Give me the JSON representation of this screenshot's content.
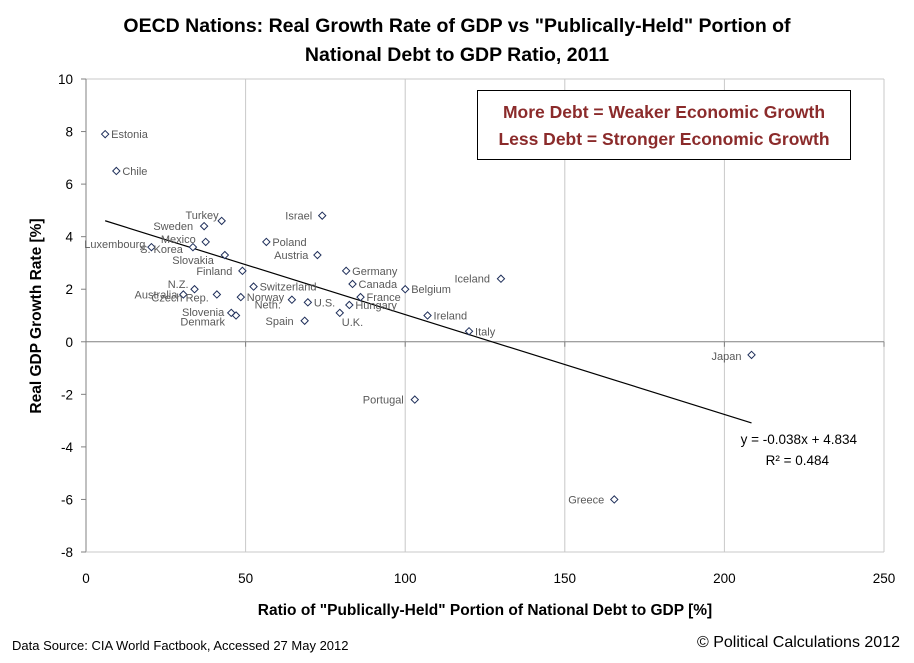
{
  "chart_data": {
    "type": "scatter",
    "title_lines": [
      "OECD Nations: Real Growth Rate of GDP vs \"Publically-Held\" Portion of",
      "National Debt to GDP Ratio, 2011"
    ],
    "xlabel": "Ratio of \"Publically-Held\" Portion of National Debt to GDP [%]",
    "ylabel": "Real GDP Growth Rate [%]",
    "xlim": [
      0,
      250
    ],
    "ylim": [
      -8,
      10
    ],
    "xticks": [
      0,
      50,
      100,
      150,
      200,
      250
    ],
    "yticks": [
      -8,
      -6,
      -4,
      -2,
      0,
      2,
      4,
      6,
      8,
      10
    ],
    "grid": "vertical",
    "points": [
      {
        "label": "Estonia",
        "x": 6,
        "y": 7.9
      },
      {
        "label": "Chile",
        "x": 9.5,
        "y": 6.5
      },
      {
        "label": "Luxembourg",
        "x": 20.5,
        "y": 3.6
      },
      {
        "label": "Turkey",
        "x": 42.5,
        "y": 4.6
      },
      {
        "label": "Sweden",
        "x": 37,
        "y": 4.4
      },
      {
        "label": "Mexico",
        "x": 37.5,
        "y": 3.8
      },
      {
        "label": "S. Korea",
        "x": 33.5,
        "y": 3.6
      },
      {
        "label": "Slovakia",
        "x": 43.5,
        "y": 3.3
      },
      {
        "label": "Poland",
        "x": 56.5,
        "y": 3.8
      },
      {
        "label": "Israel",
        "x": 74,
        "y": 4.8
      },
      {
        "label": "Austria",
        "x": 72.5,
        "y": 3.3
      },
      {
        "label": "Finland",
        "x": 49,
        "y": 2.7
      },
      {
        "label": "N.Z.",
        "x": 34,
        "y": 2.0
      },
      {
        "label": "Australia",
        "x": 30.5,
        "y": 1.8
      },
      {
        "label": "Czech Rep.",
        "x": 41,
        "y": 1.8
      },
      {
        "label": "Switzerland",
        "x": 52.5,
        "y": 2.1
      },
      {
        "label": "Norway",
        "x": 48.5,
        "y": 1.7
      },
      {
        "label": "Neth.",
        "x": 64.5,
        "y": 1.6
      },
      {
        "label": "U.S.",
        "x": 69.5,
        "y": 1.5
      },
      {
        "label": "Slovenia",
        "x": 45.5,
        "y": 1.1
      },
      {
        "label": "Denmark",
        "x": 47,
        "y": 1.0
      },
      {
        "label": "Spain",
        "x": 68.5,
        "y": 0.8
      },
      {
        "label": "Germany",
        "x": 81.5,
        "y": 2.7
      },
      {
        "label": "Canada",
        "x": 83.5,
        "y": 2.2
      },
      {
        "label": "France",
        "x": 86,
        "y": 1.7
      },
      {
        "label": "Hungary",
        "x": 82.5,
        "y": 1.4
      },
      {
        "label": "U.K.",
        "x": 79.5,
        "y": 1.1
      },
      {
        "label": "Belgium",
        "x": 100,
        "y": 2.0
      },
      {
        "label": "Iceland",
        "x": 130,
        "y": 2.4
      },
      {
        "label": "Ireland",
        "x": 107,
        "y": 1.0
      },
      {
        "label": "Italy",
        "x": 120,
        "y": 0.4
      },
      {
        "label": "Japan",
        "x": 208.5,
        "y": -0.5
      },
      {
        "label": "Portugal",
        "x": 103,
        "y": -2.2
      },
      {
        "label": "Greece",
        "x": 165.5,
        "y": -6.0
      }
    ],
    "trendline": {
      "slope": -0.038,
      "intercept": 4.834,
      "x_range": [
        6,
        208.5
      ],
      "equation": "y = -0.038x + 4.834",
      "r_squared": "R² = 0.484"
    },
    "colors": {
      "marker": "#1f2f5a",
      "point_label": "#595959",
      "annotation": "#8b2b2b",
      "grid": "#c8c8c8"
    }
  },
  "annotation_lines": [
    "More Debt = Weaker Economic Growth",
    "Less Debt = Stronger Economic Growth"
  ],
  "footer": {
    "source": "Data Source: CIA World Factbook, Accessed 27 May 2012",
    "copyright": "© Political Calculations 2012"
  }
}
